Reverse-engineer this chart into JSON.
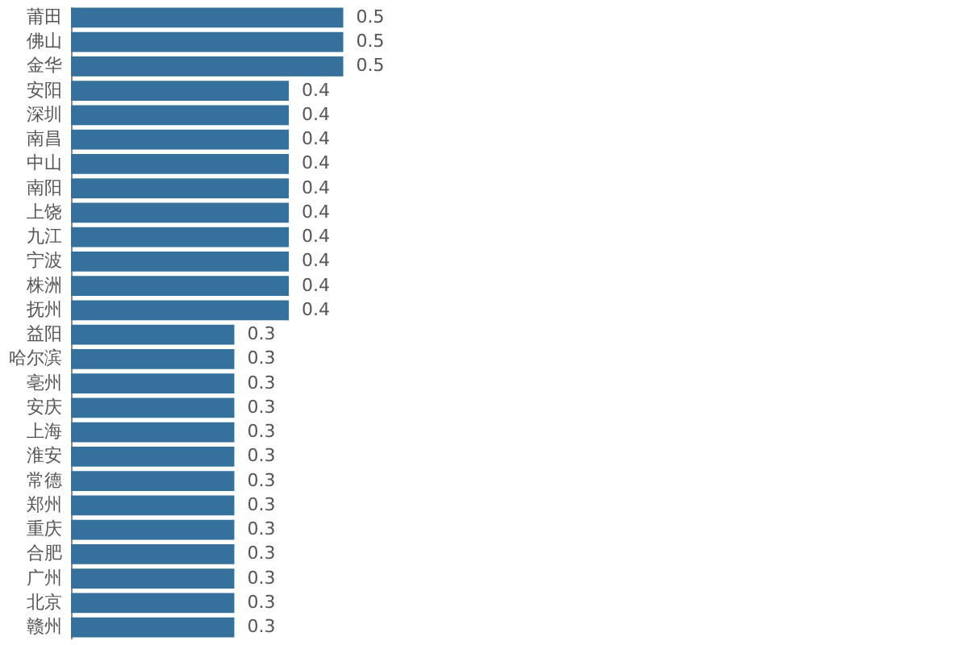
{
  "chart_data": {
    "type": "bar",
    "orientation": "horizontal",
    "data_labels": true,
    "color": "#36709c",
    "categories": [
      "莆田",
      "佛山",
      "金华",
      "安阳",
      "深圳",
      "南昌",
      "中山",
      "南阳",
      "上饶",
      "九江",
      "宁波",
      "株洲",
      "抚州",
      "益阳",
      "哈尔滨",
      "亳州",
      "安庆",
      "上海",
      "淮安",
      "常德",
      "郑州",
      "重庆",
      "合肥",
      "广州",
      "北京",
      "赣州"
    ],
    "values": [
      0.5,
      0.5,
      0.5,
      0.4,
      0.4,
      0.4,
      0.4,
      0.4,
      0.4,
      0.4,
      0.4,
      0.4,
      0.4,
      0.3,
      0.3,
      0.3,
      0.3,
      0.3,
      0.3,
      0.3,
      0.3,
      0.3,
      0.3,
      0.3,
      0.3,
      0.3
    ]
  }
}
